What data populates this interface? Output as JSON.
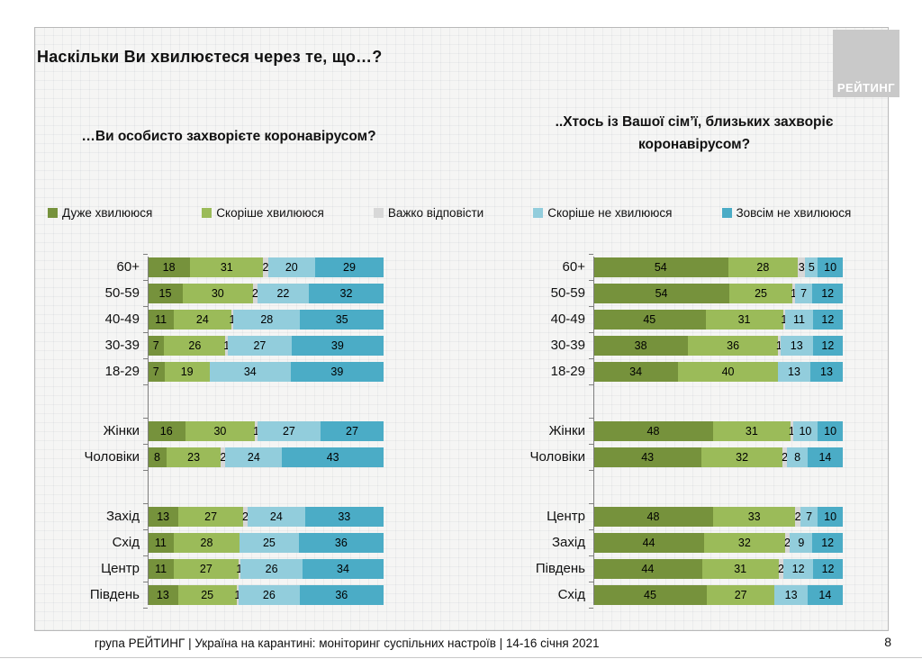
{
  "page": {
    "title": "Наскільки Ви хвилюєтеся через те, що…?",
    "logo_text": "РЕЙТИНГ",
    "footer": "група РЕЙТИНГ | Україна на карантині: моніторинг суспільних настроїв | 14-16 січня 2021",
    "page_number": "8"
  },
  "legend": [
    {
      "label": "Дуже хвилююся",
      "color": "#76923C"
    },
    {
      "label": "Скоріше хвилююся",
      "color": "#9BBB59"
    },
    {
      "label": "Важко відповісти",
      "color": "#D8D8D8"
    },
    {
      "label": "Скоріше не хвилююся",
      "color": "#92CDDC"
    },
    {
      "label": "Зовсім не хвилююся",
      "color": "#4BACC6"
    }
  ],
  "chart_data": [
    {
      "type": "bar",
      "orientation": "horizontal",
      "stacked": true,
      "percent_of_total": true,
      "xlim": [
        0,
        100
      ],
      "grid": false,
      "legend_position": "top",
      "title": "…Ви особисто захворієте коронавірусом?",
      "series_names": [
        "Дуже хвилююся",
        "Скоріше хвилююся",
        "Важко відповісти",
        "Скоріше не хвилююся",
        "Зовсім не хвилююся"
      ],
      "groups": [
        {
          "name": "age",
          "rows": [
            {
              "label": "60+",
              "values": [
                18,
                31,
                2,
                20,
                29
              ]
            },
            {
              "label": "50-59",
              "values": [
                15,
                30,
                2,
                22,
                32
              ]
            },
            {
              "label": "40-49",
              "values": [
                11,
                24,
                1,
                28,
                35
              ]
            },
            {
              "label": "30-39",
              "values": [
                7,
                26,
                1,
                27,
                39
              ]
            },
            {
              "label": "18-29",
              "values": [
                7,
                19,
                0,
                34,
                39
              ]
            }
          ]
        },
        {
          "name": "gender",
          "rows": [
            {
              "label": "Жінки",
              "values": [
                16,
                30,
                1,
                27,
                27
              ]
            },
            {
              "label": "Чоловіки",
              "values": [
                8,
                23,
                2,
                24,
                43
              ]
            }
          ]
        },
        {
          "name": "region",
          "rows": [
            {
              "label": "Захід",
              "values": [
                13,
                27,
                2,
                24,
                33
              ]
            },
            {
              "label": "Схід",
              "values": [
                11,
                28,
                0,
                25,
                36
              ]
            },
            {
              "label": "Центр",
              "values": [
                11,
                27,
                1,
                26,
                34
              ]
            },
            {
              "label": "Південь",
              "values": [
                13,
                25,
                1,
                26,
                36
              ]
            }
          ]
        }
      ]
    },
    {
      "type": "bar",
      "orientation": "horizontal",
      "stacked": true,
      "percent_of_total": true,
      "xlim": [
        0,
        100
      ],
      "grid": false,
      "legend_position": "top",
      "title": "..Хтось із Вашої сім’ї, близьких захворіє коронавірусом?",
      "series_names": [
        "Дуже хвилююся",
        "Скоріше хвилююся",
        "Важко відповісти",
        "Скоріше не хвилююся",
        "Зовсім не хвилююся"
      ],
      "groups": [
        {
          "name": "age",
          "rows": [
            {
              "label": "60+",
              "values": [
                54,
                28,
                3,
                5,
                10
              ]
            },
            {
              "label": "50-59",
              "values": [
                54,
                25,
                1,
                7,
                12
              ]
            },
            {
              "label": "40-49",
              "values": [
                45,
                31,
                1,
                11,
                12
              ]
            },
            {
              "label": "30-39",
              "values": [
                38,
                36,
                1,
                13,
                12
              ]
            },
            {
              "label": "18-29",
              "values": [
                34,
                40,
                0,
                13,
                13
              ]
            }
          ]
        },
        {
          "name": "gender",
          "rows": [
            {
              "label": "Жінки",
              "values": [
                48,
                31,
                1,
                10,
                10
              ]
            },
            {
              "label": "Чоловіки",
              "values": [
                43,
                32,
                2,
                8,
                14
              ]
            }
          ]
        },
        {
          "name": "region",
          "rows": [
            {
              "label": "Центр",
              "values": [
                48,
                33,
                2,
                7,
                10
              ]
            },
            {
              "label": "Захід",
              "values": [
                44,
                32,
                2,
                9,
                12
              ]
            },
            {
              "label": "Південь",
              "values": [
                44,
                31,
                2,
                12,
                12
              ]
            },
            {
              "label": "Схід",
              "values": [
                45,
                27,
                0,
                13,
                14
              ]
            }
          ]
        }
      ]
    }
  ]
}
